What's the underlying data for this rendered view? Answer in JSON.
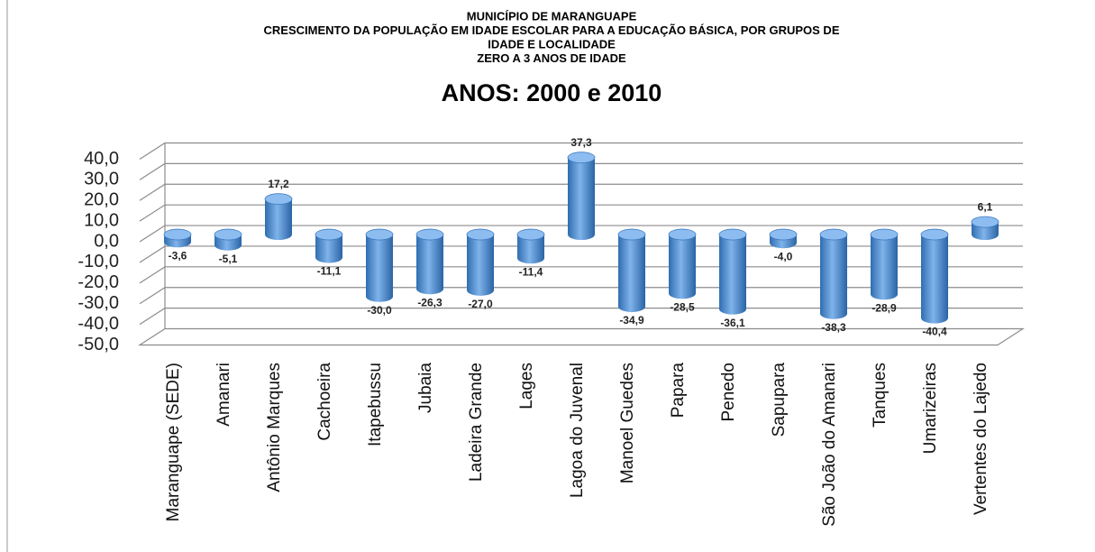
{
  "chart_data": {
    "type": "bar",
    "title_lines": [
      "MUNICÍPIO DE MARANGUAPE",
      "CRESCIMENTO DA POPULAÇÃO  EM IDADE ESCOLAR  PARA A EDUCAÇÃO  BÁSICA, POR GRUPOS DE",
      "IDADE E LOCALIDADE",
      "ZERO A 3 ANOS DE IDADE"
    ],
    "title": "ANOS: 2000 e 2010",
    "categories": [
      "Maranguape (SEDE)",
      "Amanari",
      "Antônio Marques",
      "Cachoeira",
      "Itapebussu",
      "Jubaia",
      "Ladeira Grande",
      "Lages",
      "Lagoa do Juvenal",
      "Manoel Guedes",
      "Papara",
      "Penedo",
      "Sapupara",
      "São João do Amanari",
      "Tanques",
      "Umarizeiras",
      "Vertentes do Lajedo"
    ],
    "values": [
      -3.6,
      -5.1,
      17.2,
      -11.1,
      -30.0,
      -26.3,
      -27.0,
      -11.4,
      37.3,
      -34.9,
      -28.5,
      -36.1,
      -4.0,
      -38.3,
      -28.9,
      -40.4,
      6.1
    ],
    "value_labels": [
      "-3,6",
      "-5,1",
      "17,2",
      "-11,1",
      "-30,0",
      "-26,3",
      "-27,0",
      "-11,4",
      "37,3",
      "-34,9",
      "-28,5",
      "-36,1",
      "-4,0",
      "-38,3",
      "-28,9",
      "-40,4",
      "6,1"
    ],
    "color": "#4a86c8",
    "ylim": [
      -50,
      40
    ],
    "yticks": [
      {
        "value": -50,
        "label": "-50,0"
      },
      {
        "value": -40,
        "label": "-40,0"
      },
      {
        "value": -30,
        "label": "-30,0"
      },
      {
        "value": -20,
        "label": "-20,0"
      },
      {
        "value": -10,
        "label": "-10,0"
      },
      {
        "value": 0,
        "label": "0,0"
      },
      {
        "value": 10,
        "label": "10,0"
      },
      {
        "value": 20,
        "label": "20,0"
      },
      {
        "value": 30,
        "label": "30,0"
      },
      {
        "value": 40,
        "label": "40,0"
      }
    ],
    "grid": true
  }
}
